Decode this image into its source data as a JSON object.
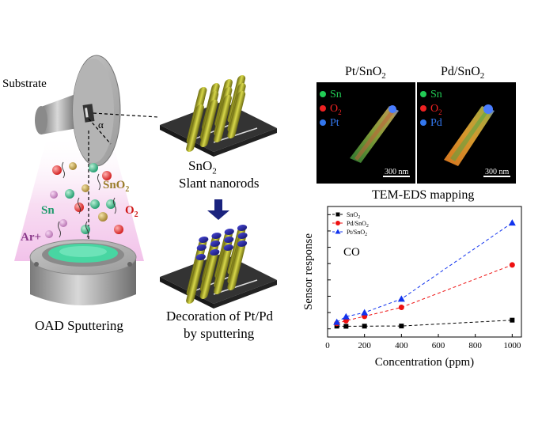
{
  "left_panel": {
    "substrate_label": "Substrate",
    "angle_label": "α",
    "sno2_label": "SnO",
    "sno2_sub": "2",
    "sn_label": "Sn",
    "o2_label": "O",
    "o2_sub": "2",
    "ar_label": "Ar+",
    "caption": "OAD Sputtering"
  },
  "middle_panel": {
    "title_line1_main": "SnO",
    "title_line1_sub": "2",
    "title_line2": "Slant nanorods",
    "caption_line1": "Decoration of Pt/Pd",
    "caption_line2": "by sputtering"
  },
  "tem_panel": {
    "left_title": "Pt/SnO",
    "left_title_sub": "2",
    "right_title": "Pd/SnO",
    "right_title_sub": "2",
    "left_legend": [
      {
        "text": "Sn",
        "sub": "",
        "color": "#22cc55"
      },
      {
        "text": "O",
        "sub": "2",
        "color": "#ee2222"
      },
      {
        "text": "Pt",
        "sub": "",
        "color": "#3377ee"
      }
    ],
    "right_legend": [
      {
        "text": "Sn",
        "sub": "",
        "color": "#22cc55"
      },
      {
        "text": "O",
        "sub": "2",
        "color": "#ee2222"
      },
      {
        "text": "Pd",
        "sub": "",
        "color": "#3377ee"
      }
    ],
    "scale_bar_label": "300 nm",
    "mapping_title": "TEM-EDS mapping"
  },
  "chart_data": {
    "type": "line",
    "x": [
      50,
      100,
      200,
      400,
      1000
    ],
    "series": [
      {
        "name": "SnO2",
        "label_main": "SnO",
        "label_sub": "2",
        "color": "#000000",
        "marker": "square",
        "values": [
          1.0,
          0.95,
          1.0,
          1.05,
          3.2
        ]
      },
      {
        "name": "Pd/SnO2",
        "label_main": "Pd/SnO",
        "label_sub": "2",
        "color": "#ee1111",
        "marker": "circle",
        "values": [
          2.0,
          3.0,
          4.6,
          7.9,
          23.5
        ]
      },
      {
        "name": "Pt/SnO2",
        "label_main": "Pt/SnO",
        "label_sub": "2",
        "color": "#1133ee",
        "marker": "triangle",
        "values": [
          2.5,
          4.5,
          6.0,
          11.0,
          39.0
        ]
      }
    ],
    "annotation": "CO",
    "xlabel": "Concentration (ppm)",
    "ylabel": "Sensor response",
    "xlim": [
      0,
      1050
    ],
    "ylim": [
      -3,
      45
    ],
    "xticks": [
      0,
      200,
      400,
      600,
      800,
      1000
    ],
    "ytick_count": 8,
    "legend_position": "top-left",
    "grid": false
  }
}
